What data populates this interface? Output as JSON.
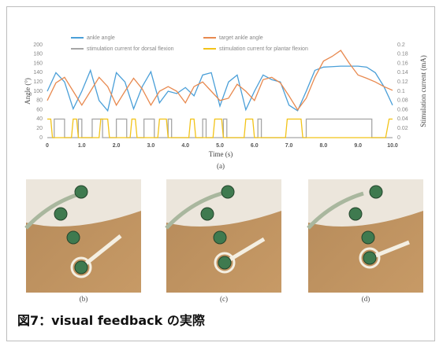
{
  "chart_data": {
    "type": "line",
    "x": [
      0,
      0.25,
      0.5,
      0.75,
      1,
      1.25,
      1.5,
      1.75,
      2,
      2.25,
      2.5,
      2.75,
      3,
      3.25,
      3.5,
      3.75,
      4,
      4.25,
      4.5,
      4.75,
      5,
      5.25,
      5.5,
      5.75,
      6,
      6.25,
      6.5,
      6.75,
      7,
      7.25,
      7.5,
      7.75,
      8,
      8.25,
      8.5,
      8.75,
      9,
      9.25,
      9.5,
      9.75,
      10
    ],
    "series": [
      {
        "name": "ankle angle",
        "color": "#4a9fd8",
        "values": [
          100,
          140,
          120,
          62,
          100,
          145,
          80,
          58,
          140,
          120,
          62,
          110,
          142,
          75,
          100,
          95,
          108,
          90,
          135,
          140,
          68,
          120,
          135,
          60,
          100,
          135,
          125,
          120,
          70,
          58,
          100,
          145,
          152,
          153,
          154,
          154,
          154,
          152,
          140,
          110,
          70
        ]
      },
      {
        "name": "target ankle angle",
        "color": "#e8894f",
        "values": [
          80,
          118,
          130,
          100,
          70,
          100,
          130,
          110,
          70,
          100,
          128,
          105,
          70,
          100,
          110,
          100,
          75,
          110,
          120,
          100,
          80,
          85,
          115,
          100,
          80,
          125,
          130,
          118,
          90,
          60,
          85,
          130,
          165,
          175,
          188,
          160,
          135,
          128,
          120,
          110,
          102
        ]
      },
      {
        "name": "stimulation current for dorsal flexion",
        "color": "#a6a6a6",
        "axis": "y2",
        "x": [
          0,
          0.2,
          0.2,
          0.5,
          0.5,
          0.9,
          0.9,
          1.0,
          1.0,
          1.3,
          1.3,
          1.6,
          1.6,
          2.0,
          2.0,
          2.3,
          2.3,
          2.8,
          2.8,
          3.1,
          3.1,
          3.5,
          3.5,
          3.6,
          3.6,
          4.5,
          4.5,
          4.6,
          4.6,
          5.1,
          5.1,
          5.2,
          5.2,
          6.1,
          6.1,
          6.2,
          6.2,
          7.5,
          7.5,
          9.4,
          9.4,
          10
        ],
        "values": [
          0,
          0,
          0.04,
          0.04,
          0,
          0,
          0.04,
          0.04,
          0,
          0,
          0.04,
          0.04,
          0,
          0,
          0.04,
          0.04,
          0,
          0,
          0.04,
          0.04,
          0,
          0,
          0.04,
          0.04,
          0,
          0,
          0.04,
          0.04,
          0,
          0,
          0.04,
          0.04,
          0,
          0,
          0.04,
          0.04,
          0,
          0,
          0.04,
          0.04,
          0,
          0
        ]
      },
      {
        "name": "stimulation current for plantar flexion",
        "color": "#f2c318",
        "axis": "y2",
        "x": [
          0,
          0.1,
          0.15,
          0.7,
          0.75,
          0.85,
          0.9,
          1.5,
          1.55,
          1.75,
          1.8,
          2.4,
          2.45,
          2.55,
          2.6,
          3.2,
          3.25,
          3.45,
          3.5,
          4.1,
          4.15,
          4.25,
          4.3,
          4.8,
          4.85,
          5.05,
          5.1,
          5.7,
          5.75,
          5.95,
          6.0,
          6.9,
          6.95,
          7.35,
          7.4,
          9.8,
          9.9,
          10
        ],
        "values": [
          0.04,
          0.04,
          0,
          0,
          0.04,
          0.04,
          0,
          0,
          0.04,
          0.04,
          0,
          0,
          0.04,
          0.04,
          0,
          0,
          0.04,
          0.04,
          0,
          0,
          0.04,
          0.04,
          0,
          0,
          0.04,
          0.04,
          0,
          0,
          0.04,
          0.04,
          0,
          0,
          0.04,
          0.04,
          0,
          0,
          0.04,
          0.04
        ]
      }
    ],
    "xlabel": "Time (s)",
    "ylabel": "Angle (°)",
    "y2label": "Stimulation current (mA)",
    "xlim": [
      0,
      10
    ],
    "xticks": [
      0,
      {
        "value": 1,
        "label": "1.0"
      },
      {
        "value": 2,
        "label": "2.0"
      },
      {
        "value": 3,
        "label": "3.0"
      },
      {
        "value": 4,
        "label": "4.0"
      },
      {
        "value": 5,
        "label": "5.0"
      },
      {
        "value": 6,
        "label": "6.0"
      },
      {
        "value": 7,
        "label": "7.0"
      },
      {
        "value": 8,
        "label": "8.0"
      },
      {
        "value": 9,
        "label": "9.0"
      },
      {
        "value": 10,
        "label": "10.0"
      }
    ],
    "ylim": [
      0,
      200
    ],
    "yticks": [
      0,
      20,
      40,
      60,
      80,
      100,
      120,
      140,
      160,
      180,
      200
    ],
    "y2lim": [
      0,
      0.2
    ],
    "y2ticks": [
      0,
      0.02,
      0.04,
      0.06,
      0.08,
      0.1,
      0.12,
      0.14,
      0.16,
      0.18,
      0.2
    ],
    "grid": false,
    "panel_label": "(a)"
  },
  "photos": [
    {
      "label": "(b)"
    },
    {
      "label": "(c)"
    },
    {
      "label": "(d)"
    }
  ],
  "caption": "図7：visual feedback の実際"
}
